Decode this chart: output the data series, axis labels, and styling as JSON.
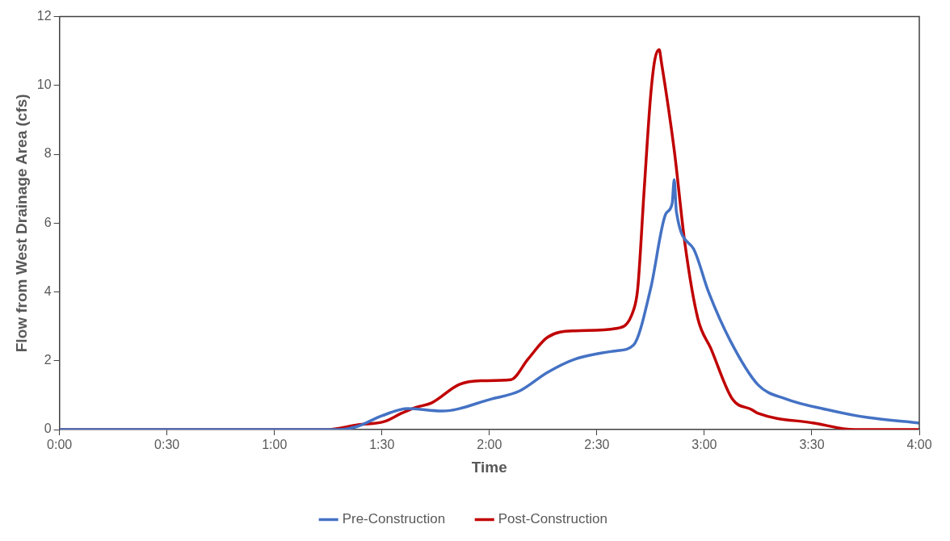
{
  "chart_data": {
    "type": "line",
    "xlabel": "Time",
    "ylabel": "Flow from West Drainage Area (cfs)",
    "xlim": [
      0,
      4
    ],
    "xticks": [
      {
        "value": 0,
        "label": "0:00"
      },
      {
        "value": 0.5,
        "label": "0:30"
      },
      {
        "value": 1,
        "label": "1:00"
      },
      {
        "value": 1.5,
        "label": "1:30"
      },
      {
        "value": 2,
        "label": "2:00"
      },
      {
        "value": 2.5,
        "label": "2:30"
      },
      {
        "value": 3,
        "label": "3:00"
      },
      {
        "value": 3.5,
        "label": "3:30"
      },
      {
        "value": 4,
        "label": "4:00"
      }
    ],
    "ylim": [
      0,
      12
    ],
    "yticks": [
      0,
      2,
      4,
      6,
      8,
      10,
      12
    ],
    "grid": false,
    "legend": "bottom",
    "marker": "none",
    "line_style": "solid",
    "series": [
      {
        "name": "Pre-Construction",
        "color": "#4472c4",
        "x": [
          0,
          1.3,
          1.39,
          1.5,
          1.62,
          1.78,
          2.01,
          2.14,
          2.27,
          2.4,
          2.59,
          2.67,
          2.75,
          2.82,
          2.85,
          2.86,
          2.87,
          2.95,
          3.02,
          3.12,
          3.25,
          3.38,
          3.57,
          3.76,
          4.0
        ],
        "values": [
          0,
          0,
          0.1,
          0.4,
          0.61,
          0.54,
          0.89,
          1.12,
          1.66,
          2.05,
          2.29,
          2.45,
          4.09,
          6.26,
          6.56,
          7.26,
          6.33,
          5.25,
          3.99,
          2.59,
          1.3,
          0.89,
          0.58,
          0.35,
          0.19
        ]
      },
      {
        "name": "Post-Construction",
        "color": "#c00000",
        "x": [
          0,
          1.24,
          1.39,
          1.51,
          1.59,
          1.66,
          1.73,
          1.86,
          1.96,
          2.1,
          2.18,
          2.27,
          2.4,
          2.59,
          2.67,
          2.69,
          2.72,
          2.75,
          2.77,
          2.79,
          2.8,
          2.86,
          2.91,
          2.97,
          3.03,
          3.13,
          3.22,
          3.25,
          3.51,
          3.7,
          4.0
        ],
        "values": [
          0,
          0,
          0.14,
          0.23,
          0.47,
          0.65,
          0.77,
          1.31,
          1.42,
          1.45,
          2.05,
          2.68,
          2.87,
          2.94,
          3.46,
          4.09,
          6.96,
          9.69,
          10.76,
          11.04,
          10.69,
          8.12,
          5.39,
          3.22,
          2.36,
          0.89,
          0.58,
          0.47,
          0.19,
          0,
          0
        ]
      }
    ]
  }
}
